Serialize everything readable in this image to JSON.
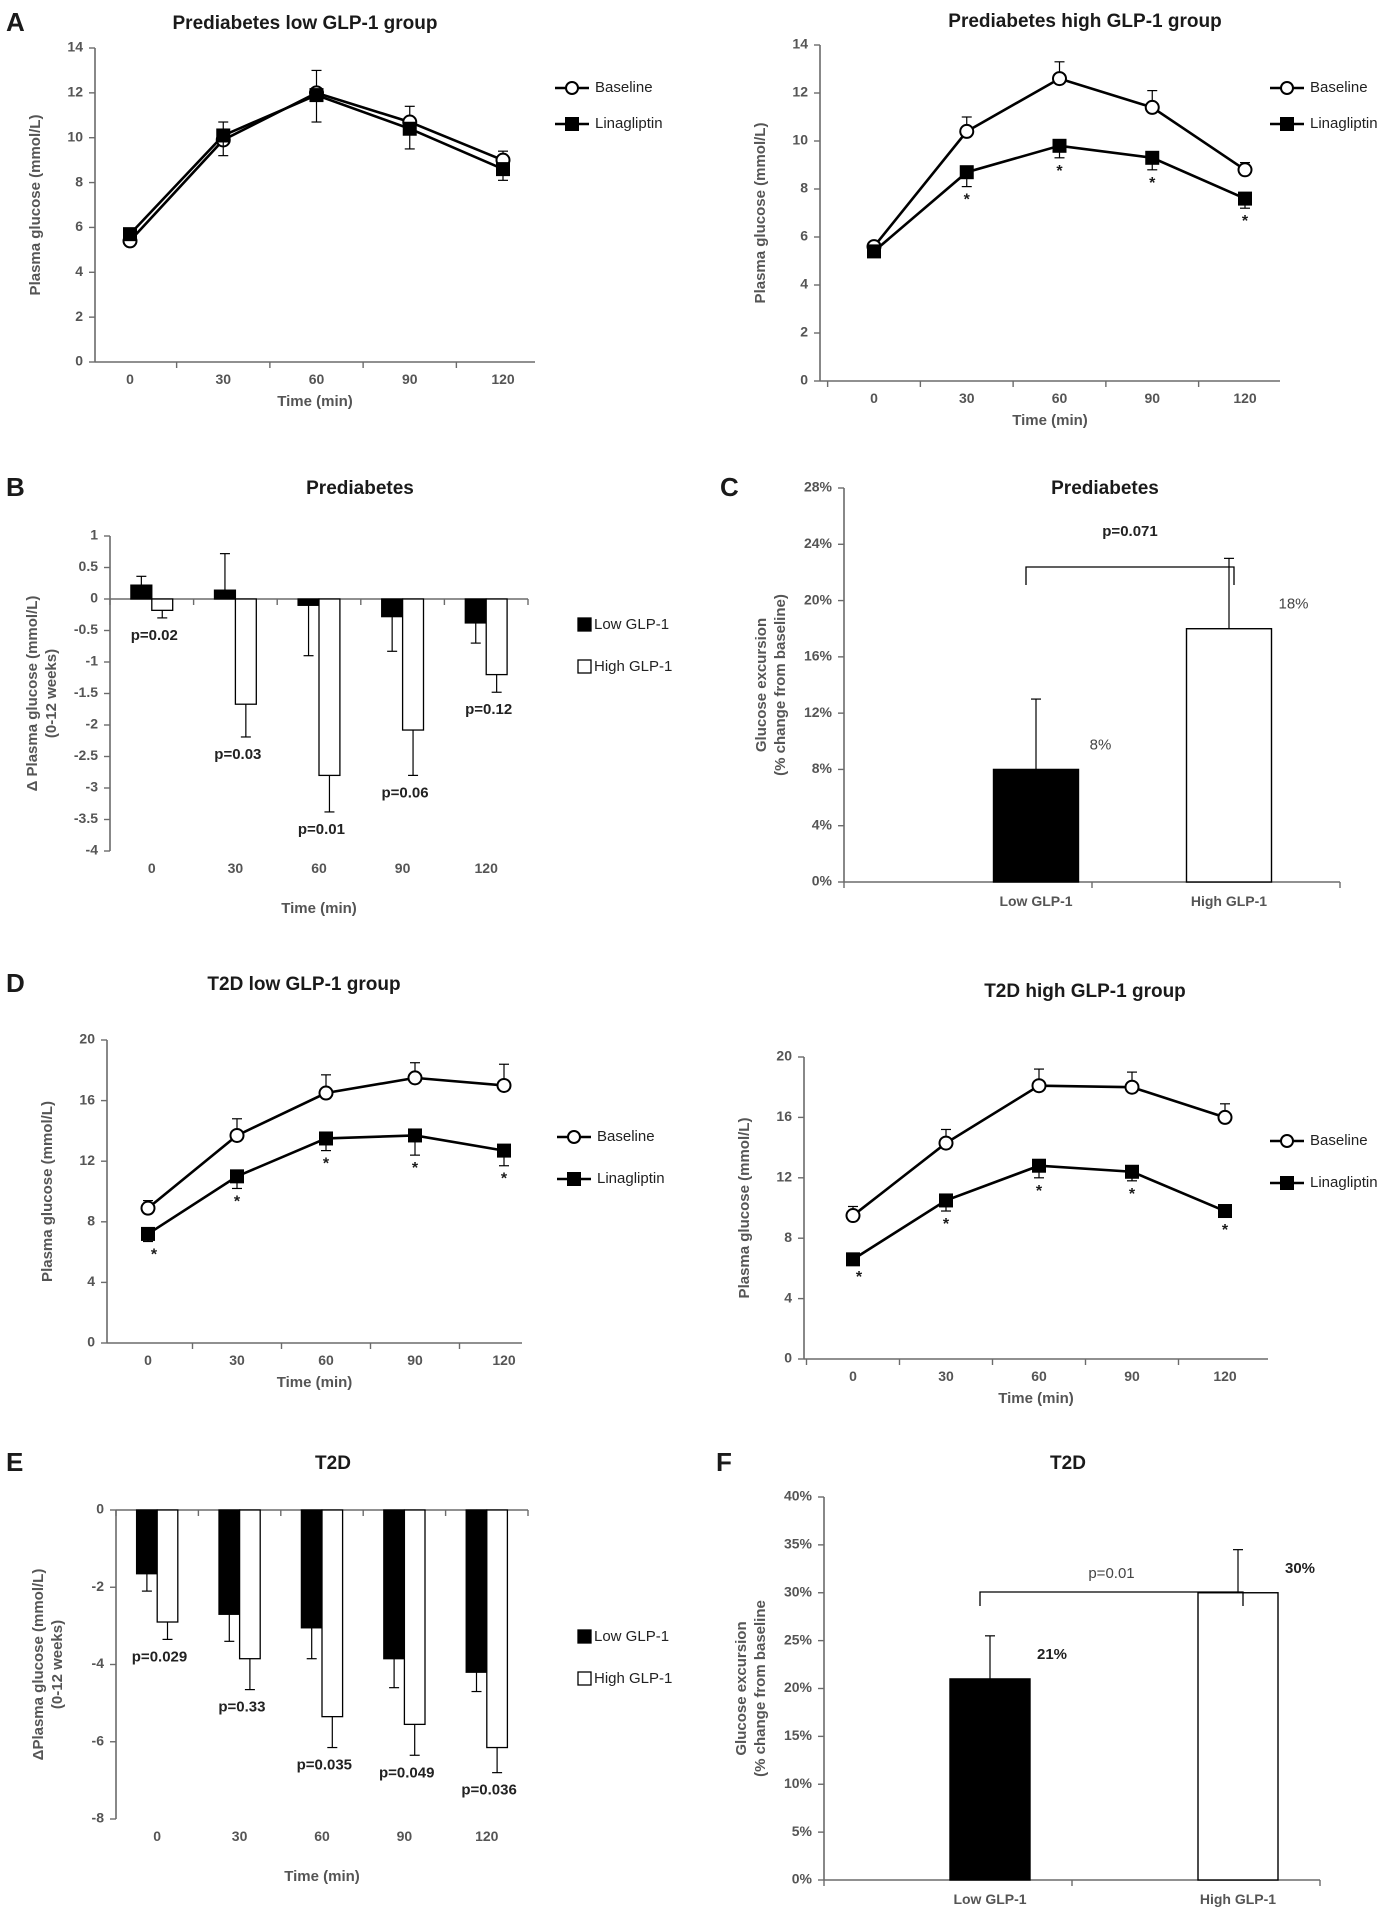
{
  "figure": {
    "panel_letters": [
      "A",
      "B",
      "C",
      "D",
      "E",
      "F"
    ]
  },
  "chart_data": [
    {
      "id": "A1",
      "panel": "A",
      "type": "line",
      "title": "Prediabetes low  GLP-1 group",
      "xlabel": "Time (min)",
      "ylabel": "Plasma glucose (mmol/L)",
      "ylim": [
        0,
        14
      ],
      "yticks": [
        0,
        2,
        4,
        6,
        8,
        10,
        12,
        14
      ],
      "x": [
        0,
        30,
        60,
        90,
        120
      ],
      "series": [
        {
          "name": "Baseline",
          "marker": "open-circle",
          "values": [
            5.4,
            9.9,
            12.0,
            10.7,
            9.0
          ],
          "errors": [
            0.2,
            0.8,
            1.0,
            0.7,
            0.4
          ]
        },
        {
          "name": "Linagliptin",
          "marker": "filled-square",
          "values": [
            5.7,
            10.1,
            11.9,
            10.4,
            8.6
          ],
          "errors": [
            0.2,
            0.9,
            1.2,
            0.9,
            0.5
          ]
        }
      ],
      "significance": []
    },
    {
      "id": "A2",
      "panel": "",
      "type": "line",
      "title": "Prediabetes high  GLP-1 group",
      "xlabel": "Time (min)",
      "ylabel": "Plasma glucose (mmol/L)",
      "ylim": [
        0,
        14
      ],
      "yticks": [
        0,
        2,
        4,
        6,
        8,
        10,
        12,
        14
      ],
      "x": [
        0,
        30,
        60,
        90,
        120
      ],
      "series": [
        {
          "name": "Baseline",
          "marker": "open-circle",
          "values": [
            5.6,
            10.4,
            12.6,
            11.4,
            8.8
          ],
          "errors": [
            0.2,
            0.6,
            0.7,
            0.7,
            0.3
          ]
        },
        {
          "name": "Linagliptin",
          "marker": "filled-square",
          "values": [
            5.4,
            8.7,
            9.8,
            9.3,
            7.6
          ],
          "errors": [
            0.2,
            0.6,
            0.5,
            0.5,
            0.4
          ]
        }
      ],
      "significance": [
        {
          "x": 30,
          "label": "*"
        },
        {
          "x": 60,
          "label": "*"
        },
        {
          "x": 90,
          "label": "*"
        },
        {
          "x": 120,
          "label": "*"
        }
      ]
    },
    {
      "id": "B",
      "panel": "B",
      "type": "bar",
      "title": "Prediabetes",
      "xlabel": "Time (min)",
      "ylabel": "Δ Plasma glucose (mmol/L)\n(0-12 weeks)",
      "ylim": [
        -4,
        1
      ],
      "yticks": [
        1,
        0.5,
        0,
        -0.5,
        -1,
        -1.5,
        -2,
        -2.5,
        -3,
        -3.5,
        -4
      ],
      "categories": [
        "0",
        "30",
        "60",
        "90",
        "120"
      ],
      "series": [
        {
          "name": "Low GLP-1",
          "fill": "#000000",
          "values": [
            0.22,
            0.14,
            -0.1,
            -0.28,
            -0.38
          ],
          "errors": [
            0.14,
            0.58,
            0.8,
            0.55,
            0.32
          ]
        },
        {
          "name": "High GLP-1",
          "fill": "#ffffff",
          "values": [
            -0.18,
            -1.67,
            -2.8,
            -2.08,
            -1.2
          ],
          "errors": [
            0.12,
            0.52,
            0.58,
            0.72,
            0.28
          ]
        }
      ],
      "annotations": [
        "p=0.02",
        "p=0.03",
        "p=0.01",
        "p=0.06",
        "p=0.12"
      ]
    },
    {
      "id": "C",
      "panel": "C",
      "type": "bar",
      "title": "Prediabetes",
      "xlabel": "",
      "ylabel": "Glucose excursion\n(% change from baseline)",
      "ylim": [
        0,
        28
      ],
      "yticks": [
        0,
        4,
        8,
        12,
        16,
        20,
        24,
        28
      ],
      "tick_suffix": "%",
      "categories": [
        "Low GLP-1",
        "High GLP-1"
      ],
      "values": [
        8,
        18
      ],
      "errors": [
        5,
        5
      ],
      "fills": [
        "#000000",
        "#ffffff"
      ],
      "value_labels": [
        "8%",
        "18%"
      ],
      "bracket_label": "p=0.071"
    },
    {
      "id": "D1",
      "panel": "D",
      "type": "line",
      "title": "T2D low GLP-1 group",
      "xlabel": "Time (min)",
      "ylabel": "Plasma glucose (mmol/L)",
      "ylim": [
        0,
        20
      ],
      "yticks": [
        0,
        4,
        8,
        12,
        16,
        20
      ],
      "x": [
        0,
        30,
        60,
        90,
        120
      ],
      "series": [
        {
          "name": "Baseline",
          "marker": "open-circle",
          "values": [
            8.9,
            13.7,
            16.5,
            17.5,
            17.0
          ],
          "errors": [
            0.5,
            1.1,
            1.2,
            1.0,
            1.4
          ]
        },
        {
          "name": "Linagliptin",
          "marker": "filled-square",
          "values": [
            7.2,
            11.0,
            13.5,
            13.7,
            12.7
          ],
          "errors": [
            0.5,
            0.8,
            0.8,
            1.3,
            1.0
          ]
        }
      ],
      "significance": [
        {
          "x": 0,
          "label": "*"
        },
        {
          "x": 30,
          "label": "*"
        },
        {
          "x": 60,
          "label": "*"
        },
        {
          "x": 90,
          "label": "*"
        },
        {
          "x": 120,
          "label": "*"
        }
      ]
    },
    {
      "id": "D2",
      "panel": "",
      "type": "line",
      "title": "T2D high GLP-1 group",
      "xlabel": "Time (min)",
      "ylabel": "Plasma glucose (mmol/L)",
      "ylim": [
        0,
        20
      ],
      "yticks": [
        0,
        4,
        8,
        12,
        16,
        20
      ],
      "x": [
        0,
        30,
        60,
        90,
        120
      ],
      "series": [
        {
          "name": "Baseline",
          "marker": "open-circle",
          "values": [
            9.5,
            14.3,
            18.1,
            18.0,
            16.0
          ],
          "errors": [
            0.6,
            0.9,
            1.1,
            1.0,
            0.9
          ]
        },
        {
          "name": "Linagliptin",
          "marker": "filled-square",
          "values": [
            6.6,
            10.5,
            12.8,
            12.4,
            9.8
          ],
          "errors": [
            0.3,
            0.7,
            0.8,
            0.6,
            0.4
          ]
        }
      ],
      "significance": [
        {
          "x": 0,
          "label": "*"
        },
        {
          "x": 30,
          "label": "*"
        },
        {
          "x": 60,
          "label": "*"
        },
        {
          "x": 90,
          "label": "*"
        },
        {
          "x": 120,
          "label": "*"
        }
      ]
    },
    {
      "id": "E",
      "panel": "E",
      "type": "bar",
      "title": "T2D",
      "xlabel": "Time (min)",
      "ylabel": "ΔPlasma glucose (mmol/L)\n(0-12 weeks)",
      "ylim": [
        -8,
        0
      ],
      "yticks": [
        0,
        -2,
        -4,
        -6,
        -8
      ],
      "categories": [
        "0",
        "30",
        "60",
        "90",
        "120"
      ],
      "series": [
        {
          "name": "Low GLP-1",
          "fill": "#000000",
          "values": [
            -1.65,
            -2.7,
            -3.05,
            -3.85,
            -4.2
          ],
          "errors": [
            0.45,
            0.7,
            0.8,
            0.75,
            0.5
          ]
        },
        {
          "name": "High GLP-1",
          "fill": "#ffffff",
          "values": [
            -2.9,
            -3.85,
            -5.35,
            -5.55,
            -6.15
          ],
          "errors": [
            0.45,
            0.8,
            0.8,
            0.8,
            0.65
          ]
        }
      ],
      "annotations": [
        "p=0.029",
        "p=0.33",
        "p=0.035",
        "p=0.049",
        "p=0.036"
      ]
    },
    {
      "id": "F",
      "panel": "F",
      "type": "bar",
      "title": "T2D",
      "xlabel": "",
      "ylabel": "Glucose excursion\n(% change from baseline",
      "ylim": [
        0,
        40
      ],
      "yticks": [
        0,
        5,
        10,
        15,
        20,
        25,
        30,
        35,
        40
      ],
      "tick_suffix": "%",
      "categories": [
        "Low GLP-1",
        "High GLP-1"
      ],
      "values": [
        21,
        30
      ],
      "errors": [
        4.5,
        4.5
      ],
      "fills": [
        "#000000",
        "#ffffff"
      ],
      "value_labels": [
        "21%",
        "30%"
      ],
      "bracket_label": "p=0.01"
    }
  ]
}
